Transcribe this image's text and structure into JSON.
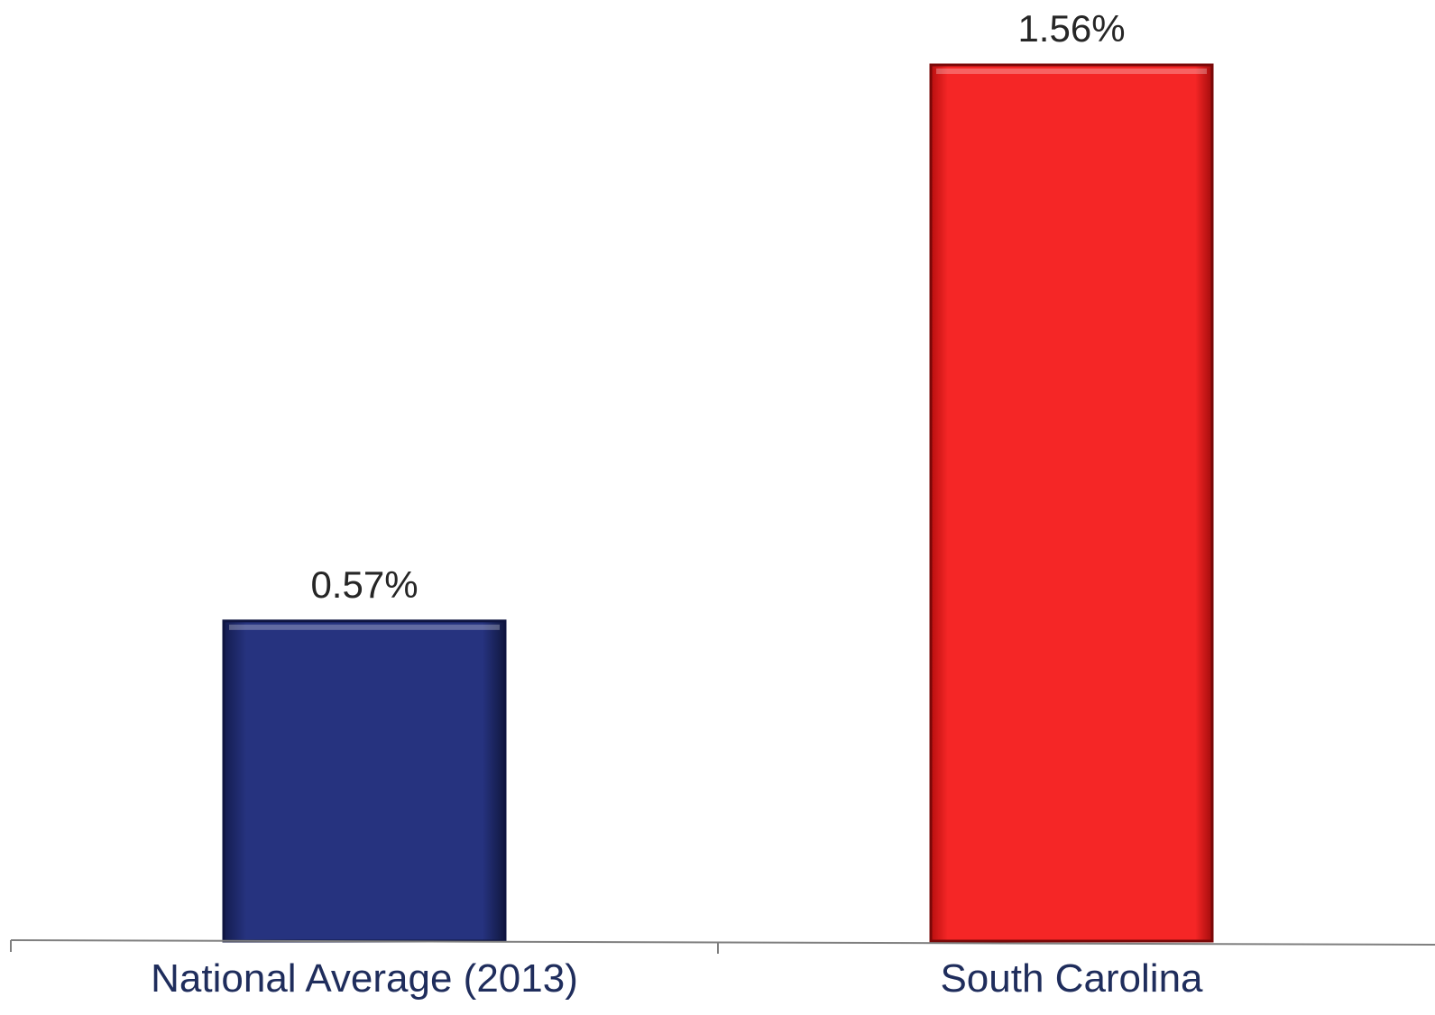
{
  "chart_data": {
    "type": "bar",
    "title": "",
    "xlabel": "",
    "ylabel": "",
    "categories": [
      "National Average (2013)",
      "South Carolina"
    ],
    "values": [
      0.57,
      1.56
    ],
    "value_labels": [
      "0.57%",
      "1.56%"
    ],
    "ylim": [
      0,
      1.56
    ],
    "grid": false,
    "legend": "none",
    "colors": [
      "#1f2a6b",
      "#ee1b1b"
    ]
  }
}
